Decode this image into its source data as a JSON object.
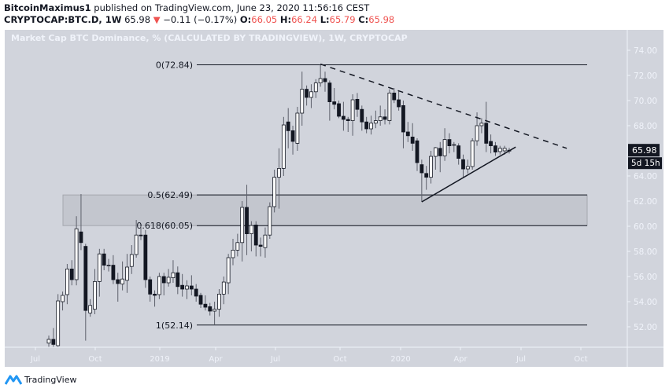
{
  "header": {
    "author": "BitcoinMaximus1",
    "published": "published on TradingView.com, June 23, 2020 11:56:16 CEST",
    "symbol": "CRYPTOCAP:BTC.D, 1W",
    "last": "65.98",
    "change": "−0.11 (−0.17%)",
    "o_label": "O:",
    "o": "66.05",
    "h_label": "H:",
    "h": "66.24",
    "l_label": "L:",
    "l": "65.79",
    "c_label": "C:",
    "c": "65.98"
  },
  "footer": {
    "brand": "TradingView"
  },
  "colors": {
    "background": "#d1d4dc",
    "up": "#ffffff",
    "down": "#131722",
    "change_down": "#ef5350",
    "zone": "#c3c6ce"
  },
  "chart_data": {
    "type": "candlestick",
    "title": "Market Cap BTC Dominance, % (CALCULATED BY TRADINGVIEW), 1W, CRYPTOCAP",
    "interval": "1W",
    "ylim": [
      50,
      75
    ],
    "y_ticks": [
      "52.00",
      "54.00",
      "56.00",
      "58.00",
      "60.00",
      "62.00",
      "64.00",
      "68.00",
      "70.00",
      "72.00",
      "74.00"
    ],
    "x_ticks": [
      "Jul",
      "Oct",
      "2019",
      "Apr",
      "Jul",
      "Oct",
      "2020",
      "Apr",
      "Jul",
      "Oct"
    ],
    "last_price_label": "65.98",
    "countdown_label": "5d 15h",
    "grid": false,
    "candles_ohlc": [
      [
        50.7,
        51.3,
        50.3,
        51.0
      ],
      [
        51.0,
        51.9,
        50.4,
        50.6
      ],
      [
        50.5,
        54.6,
        50.3,
        54.06
      ],
      [
        54.0,
        54.8,
        53.3,
        54.5
      ],
      [
        54.56,
        57.0,
        53.8,
        56.6
      ],
      [
        56.6,
        57.3,
        55.3,
        55.75
      ],
      [
        55.75,
        60.8,
        55.3,
        59.8
      ],
      [
        59.55,
        62.56,
        58.1,
        58.7
      ],
      [
        58.4,
        58.6,
        50.9,
        53.3
      ],
      [
        53.1,
        54.2,
        52.8,
        53.7
      ],
      [
        53.4,
        56.6,
        53.0,
        55.6
      ],
      [
        55.6,
        58.2,
        54.4,
        57.8
      ],
      [
        57.8,
        58.2,
        56.5,
        56.9
      ],
      [
        56.9,
        57.4,
        56.4,
        56.9
      ],
      [
        56.9,
        57.7,
        55.4,
        55.75
      ],
      [
        55.75,
        56.3,
        54.0,
        55.44
      ],
      [
        55.4,
        57.2,
        54.9,
        55.8
      ],
      [
        55.7,
        57.8,
        54.7,
        56.75
      ],
      [
        56.8,
        58.5,
        56.2,
        57.75
      ],
      [
        57.75,
        60.5,
        57.5,
        59.3
      ],
      [
        59.3,
        60.0,
        58.9,
        59.25
      ],
      [
        59.3,
        59.7,
        55.1,
        55.75
      ],
      [
        55.75,
        56.0,
        54.0,
        54.6
      ],
      [
        54.6,
        54.9,
        53.6,
        54.5
      ],
      [
        54.56,
        56.3,
        54.2,
        56.0
      ],
      [
        56.0,
        56.3,
        54.5,
        55.5
      ],
      [
        55.5,
        56.6,
        55.2,
        55.94
      ],
      [
        55.9,
        57.3,
        55.5,
        56.3
      ],
      [
        56.3,
        56.8,
        54.6,
        55.2
      ],
      [
        55.3,
        56.2,
        54.4,
        55.0
      ],
      [
        55.0,
        55.7,
        54.2,
        55.25
      ],
      [
        55.25,
        56.1,
        54.5,
        55.0
      ],
      [
        55.0,
        55.4,
        54.0,
        54.44
      ],
      [
        54.5,
        54.7,
        53.5,
        53.8
      ],
      [
        53.8,
        54.5,
        53.3,
        53.56
      ],
      [
        53.6,
        53.9,
        52.9,
        53.25
      ],
      [
        53.25,
        54.0,
        52.14,
        53.4
      ],
      [
        53.4,
        55.0,
        52.8,
        54.6
      ],
      [
        54.6,
        56.0,
        53.8,
        55.56
      ],
      [
        55.5,
        57.8,
        54.6,
        57.5
      ],
      [
        57.5,
        59.0,
        56.9,
        58.1
      ],
      [
        58.1,
        59.4,
        57.6,
        58.7
      ],
      [
        58.7,
        62.0,
        57.2,
        61.5
      ],
      [
        61.5,
        63.3,
        57.7,
        59.4
      ],
      [
        59.4,
        60.4,
        58.0,
        60.06
      ],
      [
        60.1,
        60.4,
        57.6,
        58.5
      ],
      [
        58.5,
        59.1,
        57.6,
        58.4
      ],
      [
        58.3,
        59.9,
        57.5,
        59.3
      ],
      [
        59.3,
        61.9,
        59.0,
        61.56
      ],
      [
        61.56,
        64.5,
        61.1,
        63.9
      ],
      [
        63.9,
        66.2,
        61.4,
        64.6
      ],
      [
        64.6,
        68.7,
        64.0,
        68.06
      ],
      [
        68.3,
        69.4,
        66.2,
        67.6
      ],
      [
        67.6,
        68.0,
        65.7,
        66.75
      ],
      [
        66.6,
        69.5,
        66.0,
        69.0
      ],
      [
        69.0,
        72.3,
        68.0,
        70.9
      ],
      [
        70.9,
        71.2,
        69.6,
        70.25
      ],
      [
        70.25,
        71.3,
        69.4,
        70.7
      ],
      [
        70.7,
        71.7,
        70.2,
        71.4
      ],
      [
        71.4,
        72.84,
        71.1,
        71.75
      ],
      [
        71.75,
        72.3,
        70.7,
        71.5
      ],
      [
        71.4,
        71.6,
        68.4,
        69.9
      ],
      [
        69.9,
        71.0,
        69.3,
        69.7
      ],
      [
        69.75,
        70.0,
        68.6,
        68.75
      ],
      [
        68.75,
        69.9,
        67.6,
        68.5
      ],
      [
        68.5,
        68.7,
        67.5,
        68.4
      ],
      [
        68.4,
        70.5,
        67.2,
        70.06
      ],
      [
        70.1,
        70.6,
        68.7,
        69.3
      ],
      [
        69.3,
        69.6,
        67.6,
        68.3
      ],
      [
        68.3,
        68.7,
        67.4,
        67.75
      ],
      [
        67.75,
        68.8,
        67.3,
        68.2
      ],
      [
        68.2,
        69.2,
        67.8,
        68.4
      ],
      [
        68.4,
        69.6,
        68.0,
        68.7
      ],
      [
        68.7,
        69.3,
        68.1,
        68.5
      ],
      [
        68.4,
        70.9,
        68.1,
        70.6
      ],
      [
        70.6,
        71.0,
        69.8,
        70.06
      ],
      [
        70.06,
        70.8,
        69.2,
        69.5
      ],
      [
        69.6,
        70.0,
        66.2,
        67.5
      ],
      [
        67.5,
        68.3,
        66.7,
        67.2
      ],
      [
        67.1,
        68.2,
        66.0,
        66.6
      ],
      [
        66.8,
        67.0,
        64.4,
        65.06
      ],
      [
        64.9,
        65.3,
        61.94,
        64.25
      ],
      [
        64.2,
        64.8,
        62.9,
        63.9
      ],
      [
        63.9,
        66.0,
        63.4,
        65.56
      ],
      [
        65.56,
        66.3,
        64.5,
        66.25
      ],
      [
        66.2,
        66.7,
        64.3,
        65.6
      ],
      [
        65.6,
        67.8,
        65.2,
        66.9
      ],
      [
        66.9,
        67.4,
        65.8,
        66.4
      ],
      [
        66.45,
        66.7,
        65.9,
        66.5
      ],
      [
        66.4,
        66.6,
        64.9,
        65.4
      ],
      [
        65.3,
        65.7,
        63.9,
        64.56
      ],
      [
        64.56,
        65.3,
        64.2,
        64.75
      ],
      [
        64.75,
        67.0,
        64.5,
        66.8
      ],
      [
        66.8,
        69.06,
        66.4,
        68.0
      ],
      [
        68.0,
        68.6,
        67.4,
        68.2
      ],
      [
        68.2,
        69.9,
        65.9,
        66.6
      ],
      [
        66.75,
        67.3,
        65.8,
        66.4
      ],
      [
        66.4,
        66.7,
        65.6,
        65.9
      ],
      [
        65.94,
        66.4,
        65.7,
        66.2
      ],
      [
        66.0,
        66.4,
        65.7,
        66.2
      ],
      [
        66.05,
        66.24,
        65.79,
        65.98
      ]
    ],
    "fib_levels": [
      {
        "label": "0(72.84)",
        "price": 72.84
      },
      {
        "label": "0.5(62.49)",
        "price": 62.49
      },
      {
        "label": "0.618(60.05)",
        "price": 60.05
      },
      {
        "label": "1(52.14)",
        "price": 52.14
      }
    ],
    "zone": {
      "top": 62.49,
      "bottom": 60.05
    },
    "trendlines": [
      {
        "style": "dashed",
        "from": {
          "bar": 59,
          "price": 72.9
        },
        "to": {
          "bar": 112.5,
          "price": 66.2
        }
      },
      {
        "style": "solid",
        "from": {
          "bar": 81,
          "price": 61.94
        },
        "to": {
          "bar": 101.4,
          "price": 66.3
        }
      }
    ]
  }
}
